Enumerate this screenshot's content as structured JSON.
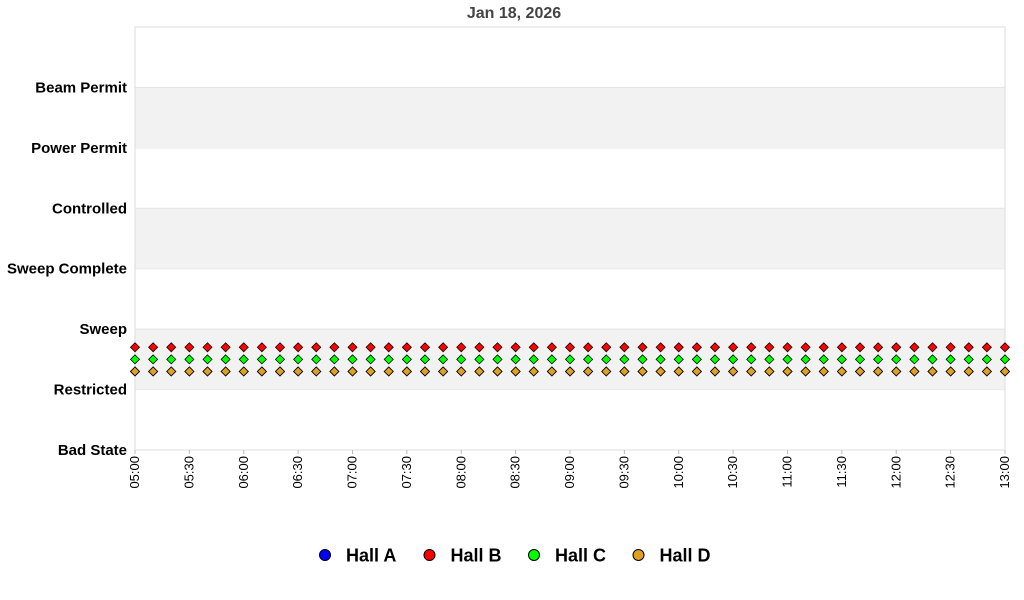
{
  "chart_data": {
    "type": "scatter",
    "title": "Jan 18, 2026",
    "xlabel": "",
    "ylabel": "",
    "x_start": "05:00",
    "x_end": "13:00",
    "x_ticks": [
      "05:00",
      "05:30",
      "06:00",
      "06:30",
      "07:00",
      "07:30",
      "08:00",
      "08:30",
      "09:00",
      "09:30",
      "10:00",
      "10:30",
      "11:00",
      "11:30",
      "12:00",
      "12:30",
      "13:00"
    ],
    "y_categories": [
      "Bad State",
      "Restricted",
      "Sweep",
      "Sweep Complete",
      "Controlled",
      "Power Permit",
      "Beam Permit"
    ],
    "grid": "alternating horizontal bands",
    "legend_position": "bottom",
    "sample_interval_minutes": 10,
    "series": [
      {
        "name": "Hall A",
        "color": "#0000ff",
        "state": "Restricted",
        "offset": -0.2
      },
      {
        "name": "Hall B",
        "color": "#ff0000",
        "state": "Restricted",
        "offset": 0.2
      },
      {
        "name": "Hall C",
        "color": "#00ff00",
        "state": "Restricted",
        "offset": 0.0
      },
      {
        "name": "Hall D",
        "color": "#e0a020",
        "state": "Restricted",
        "offset": -0.2
      }
    ]
  }
}
